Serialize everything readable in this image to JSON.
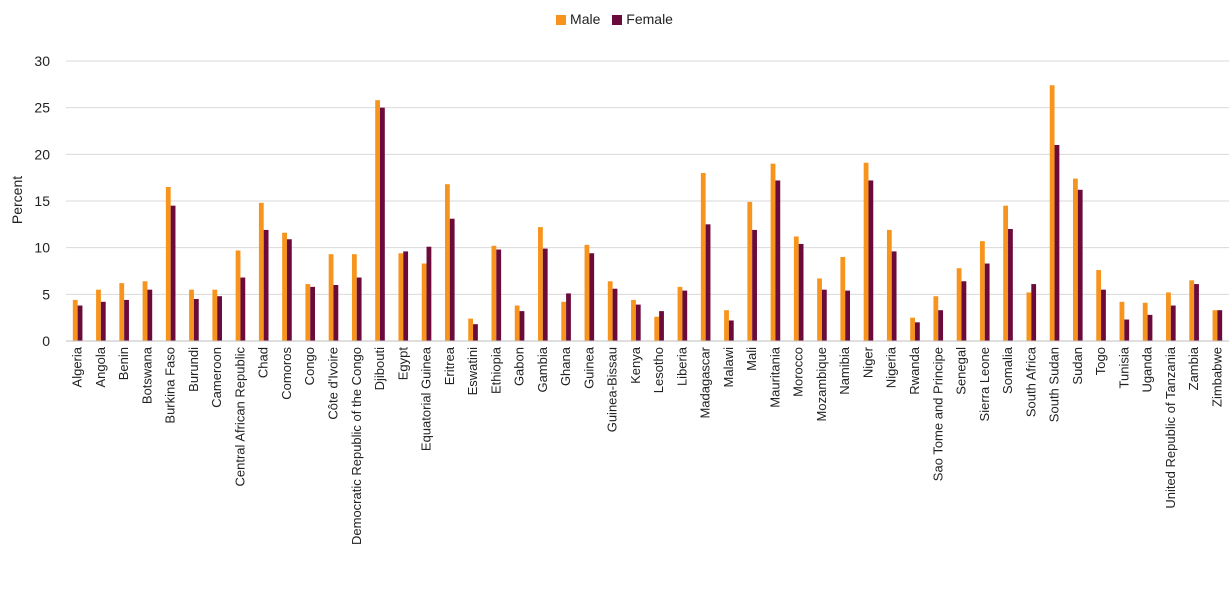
{
  "chart_data": {
    "type": "bar",
    "ylabel": "Percent",
    "xlabel": "",
    "ylim": [
      0,
      30
    ],
    "yticks": [
      0,
      5,
      10,
      15,
      20,
      25,
      30
    ],
    "grid": true,
    "legend_position": "top-center",
    "categories": [
      "Algeria",
      "Angola",
      "Benin",
      "Botswana",
      "Burkina Faso",
      "Burundi",
      "Cameroon",
      "Central African Republic",
      "Chad",
      "Comoros",
      "Congo",
      "Côte d'Ivoire",
      "Democratic Republic of the Congo",
      "Djibouti",
      "Egypt",
      "Equatorial Guinea",
      "Eritrea",
      "Eswatini",
      "Ethiopia",
      "Gabon",
      "Gambia",
      "Ghana",
      "Guinea",
      "Guinea-Bissau",
      "Kenya",
      "Lesotho",
      "Liberia",
      "Madagascar",
      "Malawi",
      "Mali",
      "Mauritania",
      "Morocco",
      "Mozambique",
      "Namibia",
      "Niger",
      "Nigeria",
      "Rwanda",
      "Sao Tome and Principe",
      "Senegal",
      "Sierra Leone",
      "Somalia",
      "South Africa",
      "South Sudan",
      "Sudan",
      "Togo",
      "Tunisia",
      "Uganda",
      "United Republic of Tanzania",
      "Zambia",
      "Zimbabwe"
    ],
    "series": [
      {
        "name": "Male",
        "color": "#F7941D",
        "values": [
          4.4,
          5.5,
          6.2,
          6.4,
          16.5,
          5.5,
          5.5,
          9.7,
          14.8,
          11.6,
          6.1,
          9.3,
          9.3,
          25.8,
          9.4,
          8.3,
          16.8,
          2.4,
          10.2,
          3.8,
          12.2,
          4.2,
          10.3,
          6.4,
          4.4,
          2.6,
          5.8,
          18.0,
          3.3,
          14.9,
          19.0,
          11.2,
          6.7,
          9.0,
          19.1,
          11.9,
          2.5,
          4.8,
          7.8,
          10.7,
          14.5,
          5.2,
          27.4,
          17.4,
          7.6,
          4.2,
          4.1,
          5.2,
          6.5,
          3.3
        ]
      },
      {
        "name": "Female",
        "color": "#6B0B3C",
        "values": [
          3.8,
          4.2,
          4.4,
          5.5,
          14.5,
          4.5,
          4.8,
          6.8,
          11.9,
          10.9,
          5.8,
          6.0,
          6.8,
          25.0,
          9.6,
          10.1,
          13.1,
          1.8,
          9.8,
          3.2,
          9.9,
          5.1,
          9.4,
          5.6,
          3.9,
          3.2,
          5.4,
          12.5,
          2.2,
          11.9,
          17.2,
          10.4,
          5.5,
          5.4,
          17.2,
          9.6,
          2.0,
          3.3,
          6.4,
          8.3,
          12.0,
          6.1,
          21.0,
          16.2,
          5.5,
          2.3,
          2.8,
          3.8,
          6.1,
          3.3
        ]
      }
    ]
  }
}
